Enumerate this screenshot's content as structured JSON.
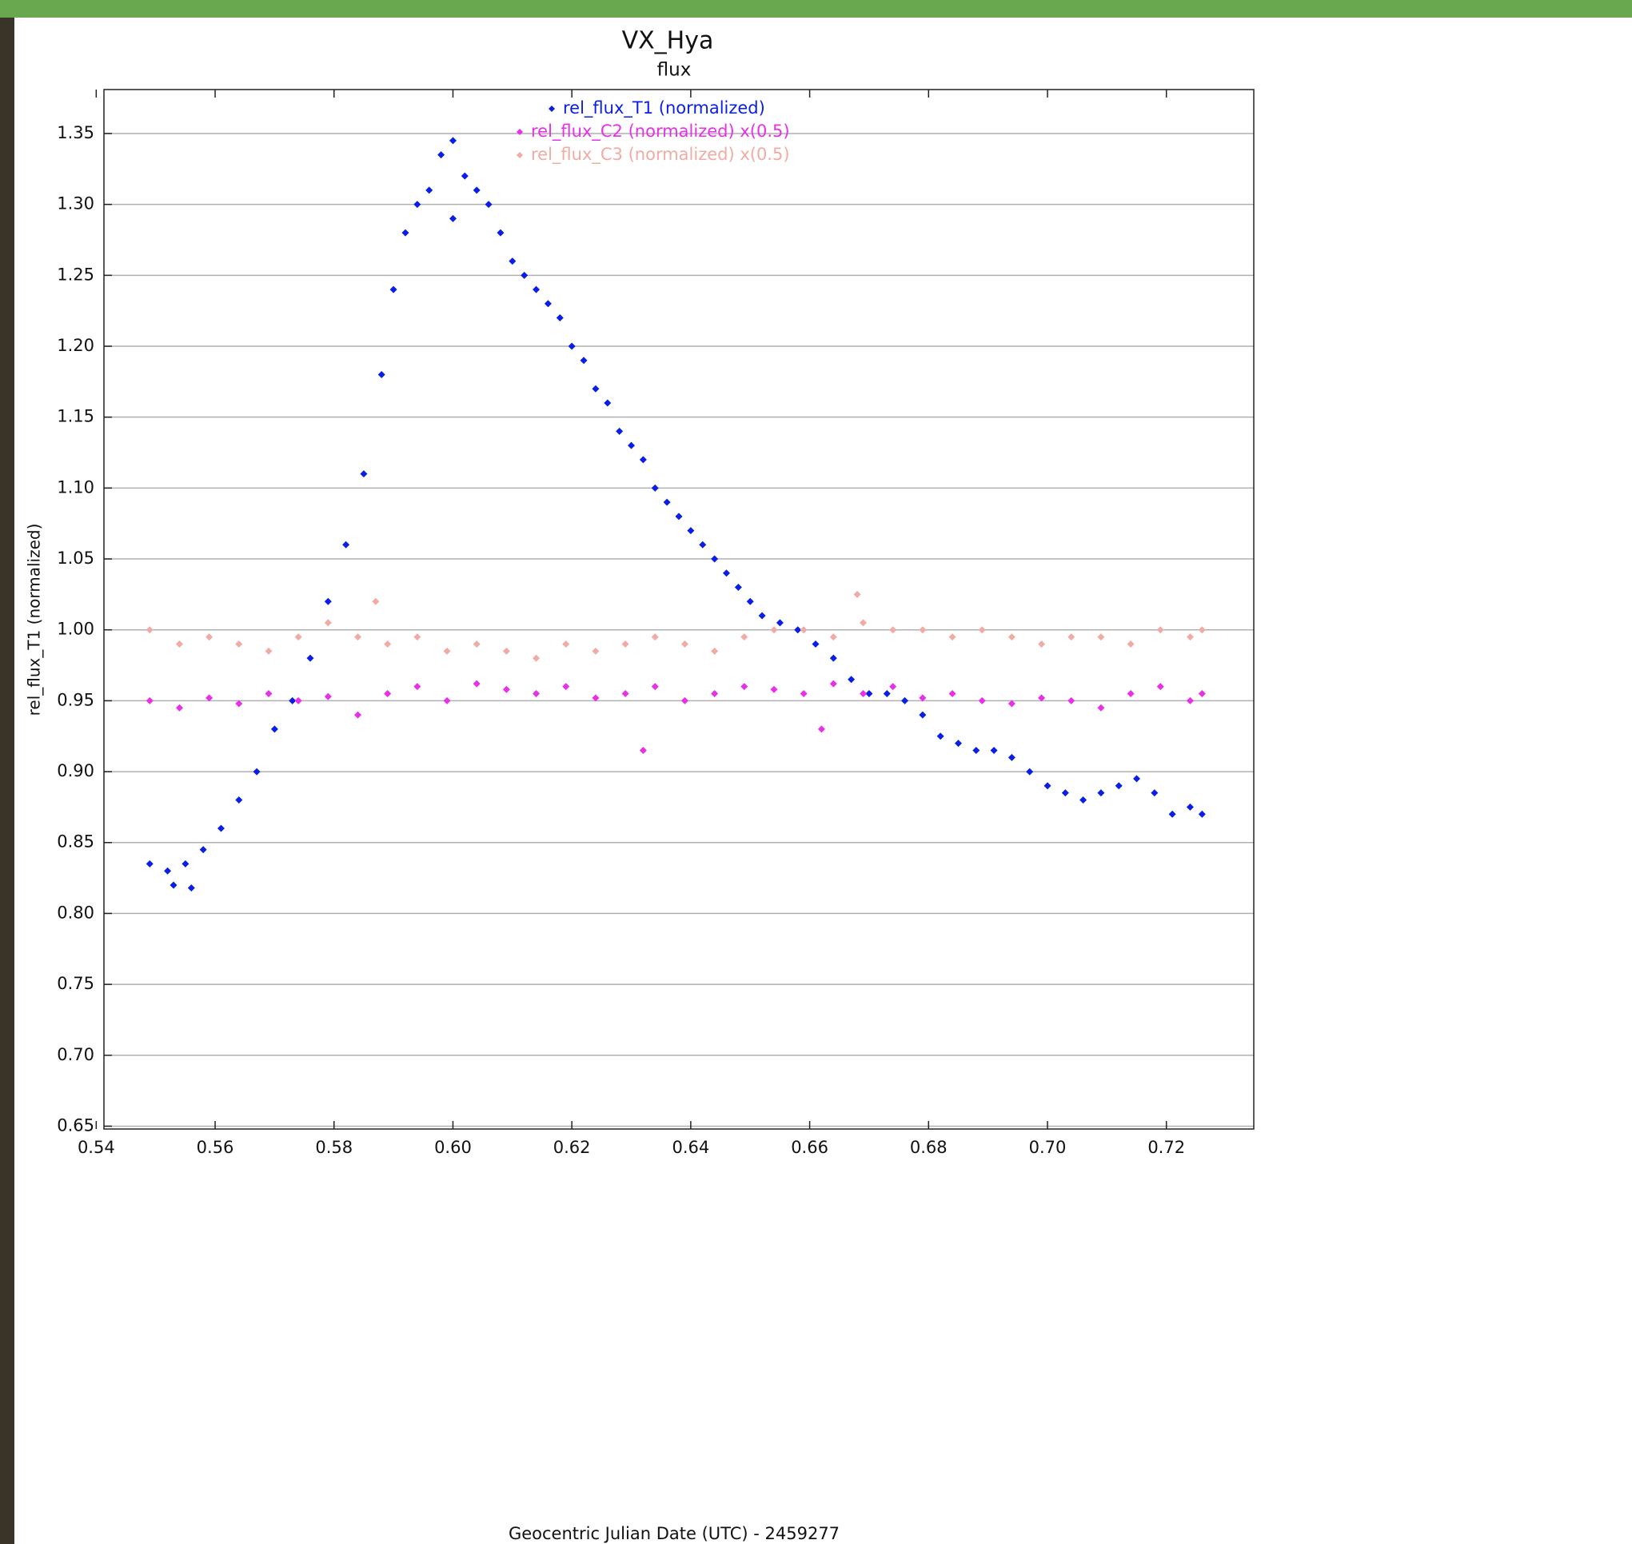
{
  "chart_data": {
    "type": "scatter",
    "title": "VX_Hya",
    "subtitle": "flux",
    "x_label": "Geocentric Julian Date (UTC) - 2459277",
    "y_label": "rel_flux_T1 (normalized)",
    "xlim": [
      0.5413,
      0.7347
    ],
    "ylim": [
      0.648,
      1.381
    ],
    "xticks": [
      0.54,
      0.56,
      0.58,
      {
        "value": 0.6,
        "label": "0.60"
      },
      0.62,
      0.64,
      0.66,
      0.68,
      {
        "value": 0.7,
        "label": "0.70"
      },
      0.72
    ],
    "yticks": [
      1.35,
      {
        "value": 1.3,
        "label": "1.30"
      },
      1.25,
      {
        "value": 1.2,
        "label": "1.20"
      },
      1.15,
      {
        "value": 1.1,
        "label": "1.10"
      },
      1.05,
      {
        "value": 1.0,
        "label": "1.00"
      },
      0.95,
      {
        "value": 0.9,
        "label": "0.90"
      },
      0.85,
      {
        "value": 0.8,
        "label": "0.80"
      },
      0.75,
      {
        "value": 0.7,
        "label": "0.70"
      },
      0.65
    ],
    "grid": true,
    "legend": "top",
    "series": [
      {
        "name": "rel_flux_T1 (normalized)",
        "color": "#0a1ee6",
        "x": [
          0.549,
          0.552,
          0.553,
          0.555,
          0.556,
          0.558,
          0.561,
          0.564,
          0.567,
          0.57,
          0.573,
          0.576,
          0.579,
          0.582,
          0.585,
          0.588,
          0.59,
          0.592,
          0.594,
          0.596,
          0.598,
          0.6,
          0.6,
          0.602,
          0.604,
          0.606,
          0.608,
          0.61,
          0.612,
          0.614,
          0.616,
          0.618,
          0.62,
          0.622,
          0.624,
          0.626,
          0.628,
          0.63,
          0.632,
          0.634,
          0.636,
          0.638,
          0.64,
          0.642,
          0.644,
          0.646,
          0.648,
          0.65,
          0.652,
          0.655,
          0.658,
          0.661,
          0.664,
          0.667,
          0.67,
          0.673,
          0.676,
          0.679,
          0.682,
          0.685,
          0.688,
          0.691,
          0.694,
          0.697,
          0.7,
          0.703,
          0.706,
          0.709,
          0.712,
          0.715,
          0.718,
          0.721,
          0.724,
          0.726
        ],
        "values": [
          0.835,
          0.83,
          0.82,
          0.835,
          0.818,
          0.845,
          0.86,
          0.88,
          0.9,
          0.93,
          0.95,
          0.98,
          1.02,
          1.06,
          1.11,
          1.18,
          1.24,
          1.28,
          1.3,
          1.31,
          1.335,
          1.345,
          1.29,
          1.32,
          1.31,
          1.3,
          1.28,
          1.26,
          1.25,
          1.24,
          1.23,
          1.22,
          1.2,
          1.19,
          1.17,
          1.16,
          1.14,
          1.13,
          1.12,
          1.1,
          1.09,
          1.08,
          1.07,
          1.06,
          1.05,
          1.04,
          1.03,
          1.02,
          1.01,
          1.005,
          1.0,
          0.99,
          0.98,
          0.965,
          0.955,
          0.955,
          0.95,
          0.94,
          0.925,
          0.92,
          0.915,
          0.915,
          0.91,
          0.9,
          0.89,
          0.885,
          0.88,
          0.885,
          0.89,
          0.895,
          0.885,
          0.87,
          0.875,
          0.87
        ]
      },
      {
        "name": "rel_flux_C2 (normalized) x(0.5)",
        "color": "#e830e8",
        "x": [
          0.549,
          0.554,
          0.559,
          0.564,
          0.569,
          0.574,
          0.579,
          0.584,
          0.589,
          0.594,
          0.599,
          0.604,
          0.609,
          0.614,
          0.619,
          0.624,
          0.629,
          0.632,
          0.634,
          0.639,
          0.644,
          0.649,
          0.654,
          0.659,
          0.662,
          0.664,
          0.669,
          0.674,
          0.679,
          0.684,
          0.689,
          0.694,
          0.699,
          0.704,
          0.709,
          0.714,
          0.719,
          0.724,
          0.726
        ],
        "values": [
          0.95,
          0.945,
          0.952,
          0.948,
          0.955,
          0.95,
          0.953,
          0.94,
          0.955,
          0.96,
          0.95,
          0.962,
          0.958,
          0.955,
          0.96,
          0.952,
          0.955,
          0.915,
          0.96,
          0.95,
          0.955,
          0.96,
          0.958,
          0.955,
          0.93,
          0.962,
          0.955,
          0.96,
          0.952,
          0.955,
          0.95,
          0.948,
          0.952,
          0.95,
          0.945,
          0.955,
          0.96,
          0.95,
          0.955
        ]
      },
      {
        "name": "rel_flux_C3 (normalized) x(0.5)",
        "color": "#f0aca4",
        "x": [
          0.549,
          0.554,
          0.559,
          0.564,
          0.569,
          0.574,
          0.579,
          0.584,
          0.587,
          0.589,
          0.594,
          0.599,
          0.604,
          0.609,
          0.614,
          0.619,
          0.624,
          0.629,
          0.634,
          0.639,
          0.644,
          0.649,
          0.654,
          0.659,
          0.664,
          0.668,
          0.669,
          0.674,
          0.679,
          0.684,
          0.689,
          0.694,
          0.699,
          0.704,
          0.709,
          0.714,
          0.719,
          0.724,
          0.726
        ],
        "values": [
          1.0,
          0.99,
          0.995,
          0.99,
          0.985,
          0.995,
          1.005,
          0.995,
          1.02,
          0.99,
          0.995,
          0.985,
          0.99,
          0.985,
          0.98,
          0.99,
          0.985,
          0.99,
          0.995,
          0.99,
          0.985,
          0.995,
          1.0,
          1.0,
          0.995,
          1.025,
          1.005,
          1.0,
          1.0,
          0.995,
          1.0,
          0.995,
          0.99,
          0.995,
          0.995,
          0.99,
          1.0,
          0.995,
          1.0
        ]
      }
    ]
  }
}
